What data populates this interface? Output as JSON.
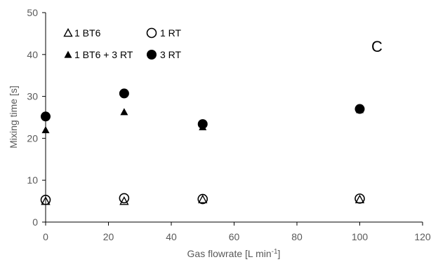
{
  "chart_data": {
    "type": "scatter",
    "panel_label": "C",
    "xlabel": "Gas flowrate [L min",
    "xlabel_sup": "-1",
    "xlabel_end": "]",
    "ylabel": "Mixing time [s]",
    "xlim": [
      0,
      120
    ],
    "ylim": [
      0,
      50
    ],
    "xticks": [
      0,
      20,
      40,
      60,
      80,
      100,
      120
    ],
    "yticks": [
      0,
      10,
      20,
      30,
      40,
      50
    ],
    "grid": false,
    "legend_position": "top-left",
    "series": [
      {
        "name": "1 BT6",
        "marker": "triangle-open",
        "x": [
          0,
          25,
          50,
          100
        ],
        "y": [
          5.0,
          5.0,
          5.4,
          5.4
        ]
      },
      {
        "name": "1 RT",
        "marker": "circle-open",
        "x": [
          0,
          25,
          50,
          100
        ],
        "y": [
          5.3,
          5.7,
          5.5,
          5.6
        ]
      },
      {
        "name": "1 BT6 + 3 RT",
        "marker": "triangle-filled",
        "x": [
          0,
          25,
          50,
          100
        ],
        "y": [
          22.0,
          26.3,
          22.7,
          26.8
        ]
      },
      {
        "name": "3 RT",
        "marker": "circle-filled",
        "x": [
          0,
          25,
          50,
          100
        ],
        "y": [
          25.2,
          30.7,
          23.4,
          27.0
        ]
      }
    ]
  }
}
